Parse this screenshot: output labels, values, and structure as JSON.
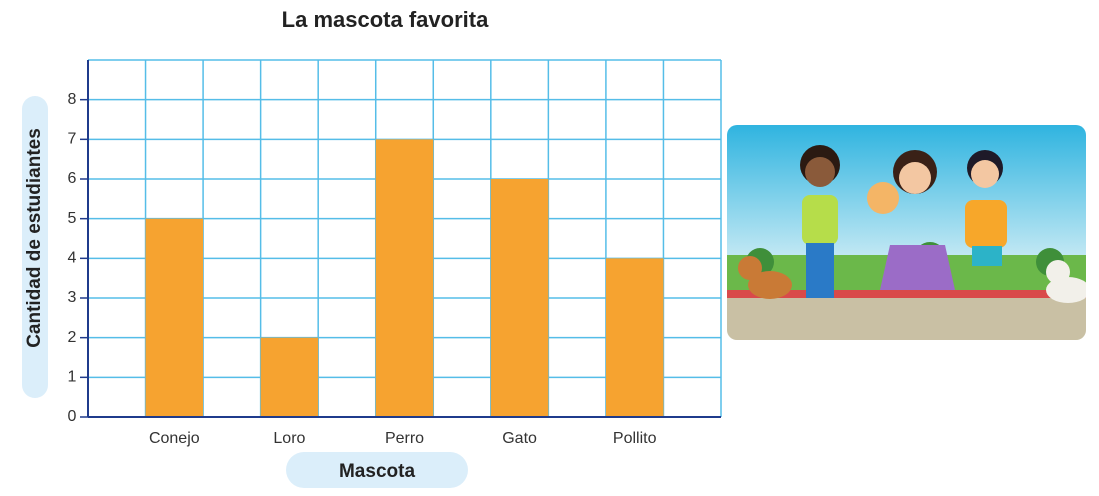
{
  "chart_data": {
    "type": "bar",
    "title": "La mascota favorita",
    "x_label": "Mascota",
    "y_label": "Cantidad de estudiantes",
    "categories": [
      "Conejo",
      "Loro",
      "Perro",
      "Gato",
      "Pollito"
    ],
    "values": [
      5,
      2,
      7,
      6,
      4
    ],
    "color": "#f6a330",
    "ylim": [
      0,
      9
    ],
    "yticks": [
      0,
      1,
      2,
      3,
      4,
      5,
      6,
      7,
      8
    ],
    "grid": true
  }
}
